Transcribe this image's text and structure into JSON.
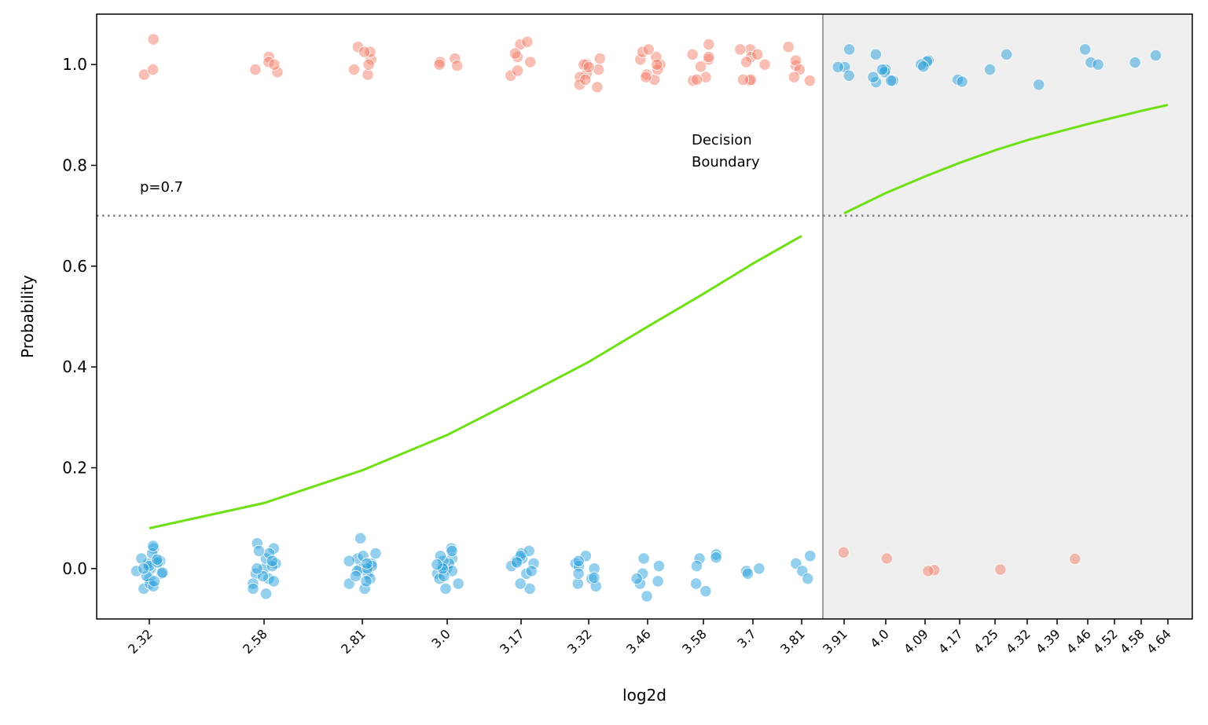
{
  "chart_data": {
    "type": "scatter",
    "xlabel": "log2d",
    "ylabel": "Probability",
    "ylim": [
      -0.1,
      1.1
    ],
    "grid": false,
    "x_tick_labels": [
      "2.32",
      "2.58",
      "2.81",
      "3.0",
      "3.17",
      "3.32",
      "3.46",
      "3.58",
      "3.7",
      "3.81",
      "3.91",
      "4.0",
      "4.09",
      "4.17",
      "4.25",
      "4.32",
      "4.39",
      "4.46",
      "4.52",
      "4.58",
      "4.64"
    ],
    "x_tick_values": [
      2.32,
      2.58,
      2.81,
      3.0,
      3.17,
      3.32,
      3.46,
      3.58,
      3.7,
      3.81,
      3.91,
      4.0,
      4.09,
      4.17,
      4.25,
      4.32,
      4.39,
      4.46,
      4.52,
      4.58,
      4.64
    ],
    "y_ticks": [
      0.0,
      0.2,
      0.4,
      0.6,
      0.8,
      1.0
    ],
    "y_tick_labels": [
      "0.0",
      "0.2",
      "0.4",
      "0.6",
      "0.8",
      "1.0"
    ],
    "threshold": {
      "value": 0.7,
      "label": "p=0.7",
      "color": "#808080",
      "style": "dotted"
    },
    "decision_boundary": {
      "x": 3.86,
      "label_line1": "Decision",
      "label_line2": "Boundary",
      "shade_color": "#efefef",
      "line_color": "#808080"
    },
    "series": [
      {
        "type": "line",
        "color": "#6ee014",
        "segments": [
          {
            "x": [
              2.32,
              2.58,
              2.81,
              3.0,
              3.17,
              3.32,
              3.46,
              3.58,
              3.7,
              3.81
            ],
            "y": [
              0.08,
              0.13,
              0.195,
              0.265,
              0.34,
              0.41,
              0.48,
              0.545,
              0.605,
              0.66
            ]
          },
          {
            "x": [
              3.91,
              4.0,
              4.09,
              4.17,
              4.25,
              4.32,
              4.39,
              4.46,
              4.52,
              4.58,
              4.64
            ],
            "y": [
              0.705,
              0.745,
              0.778,
              0.805,
              0.83,
              0.85,
              0.866,
              0.882,
              0.895,
              0.908,
              0.92
            ]
          }
        ]
      },
      {
        "type": "scatter",
        "color": "#f4806c",
        "points": [
          [
            2.32,
            1.05
          ],
          [
            2.32,
            0.98
          ],
          [
            2.32,
            0.99
          ],
          [
            2.58,
            0.985
          ],
          [
            2.58,
            1.015
          ],
          [
            2.58,
            1.005
          ],
          [
            2.58,
            0.99
          ],
          [
            2.58,
            1.0
          ],
          [
            2.81,
            0.98
          ],
          [
            2.81,
            1.01
          ],
          [
            2.81,
            1.0
          ],
          [
            2.81,
            1.035
          ],
          [
            2.81,
            1.025
          ],
          [
            2.81,
            0.99
          ],
          [
            2.81,
            1.025
          ],
          [
            3.0,
            1.005
          ],
          [
            3.0,
            1.0
          ],
          [
            3.0,
            1.012
          ],
          [
            3.0,
            0.998
          ],
          [
            3.17,
            1.005
          ],
          [
            3.17,
            0.978
          ],
          [
            3.17,
            1.04
          ],
          [
            3.17,
            1.045
          ],
          [
            3.17,
            1.015
          ],
          [
            3.17,
            1.022
          ],
          [
            3.17,
            0.988
          ],
          [
            3.32,
            1.012
          ],
          [
            3.32,
            0.99
          ],
          [
            3.32,
            0.982
          ],
          [
            3.32,
            1.0
          ],
          [
            3.32,
            0.955
          ],
          [
            3.32,
            0.975
          ],
          [
            3.32,
            0.96
          ],
          [
            3.32,
            1.0
          ],
          [
            3.32,
            0.97
          ],
          [
            3.32,
            0.995
          ],
          [
            3.46,
            1.0
          ],
          [
            3.46,
            0.98
          ],
          [
            3.46,
            0.97
          ],
          [
            3.46,
            1.01
          ],
          [
            3.46,
            0.975
          ],
          [
            3.46,
            0.99
          ],
          [
            3.46,
            1.015
          ],
          [
            3.46,
            1.025
          ],
          [
            3.46,
            1.03
          ],
          [
            3.46,
            1.0
          ],
          [
            3.58,
            1.04
          ],
          [
            3.58,
            0.968
          ],
          [
            3.58,
            0.975
          ],
          [
            3.58,
            1.02
          ],
          [
            3.58,
            1.01
          ],
          [
            3.58,
            0.996
          ],
          [
            3.58,
            1.015
          ],
          [
            3.58,
            0.97
          ],
          [
            3.7,
            0.968
          ],
          [
            3.7,
            1.03
          ],
          [
            3.7,
            0.97
          ],
          [
            3.7,
            1.0
          ],
          [
            3.7,
            1.015
          ],
          [
            3.7,
            1.03
          ],
          [
            3.7,
            1.005
          ],
          [
            3.7,
            0.97
          ],
          [
            3.7,
            1.02
          ],
          [
            3.81,
            1.035
          ],
          [
            3.81,
            0.998
          ],
          [
            3.81,
            1.008
          ],
          [
            3.81,
            0.99
          ],
          [
            3.81,
            0.975
          ],
          [
            3.81,
            0.968
          ],
          [
            3.91,
            0.032
          ],
          [
            4.0,
            0.02
          ],
          [
            4.09,
            -0.003
          ],
          [
            4.09,
            -0.005
          ],
          [
            4.25,
            -0.002
          ],
          [
            4.46,
            0.019
          ]
        ]
      },
      {
        "type": "scatter",
        "color": "#2a9fdc",
        "points": [
          [
            2.32,
            0.0
          ],
          [
            2.32,
            0.01
          ],
          [
            2.32,
            -0.02
          ],
          [
            2.32,
            0.04
          ],
          [
            2.32,
            -0.04
          ],
          [
            2.32,
            0.005
          ],
          [
            2.32,
            -0.01
          ],
          [
            2.32,
            0.02
          ],
          [
            2.32,
            -0.03
          ],
          [
            2.32,
            0.015
          ],
          [
            2.32,
            0.03
          ],
          [
            2.32,
            -0.005
          ],
          [
            2.32,
            0.045
          ],
          [
            2.32,
            -0.035
          ],
          [
            2.32,
            -0.015
          ],
          [
            2.32,
            0.012
          ],
          [
            2.32,
            -0.025
          ],
          [
            2.32,
            0.0
          ],
          [
            2.32,
            0.018
          ],
          [
            2.32,
            -0.008
          ],
          [
            2.58,
            0.0
          ],
          [
            2.58,
            -0.01
          ],
          [
            2.58,
            0.02
          ],
          [
            2.58,
            -0.02
          ],
          [
            2.58,
            0.04
          ],
          [
            2.58,
            -0.05
          ],
          [
            2.58,
            0.03
          ],
          [
            2.58,
            -0.03
          ],
          [
            2.58,
            0.01
          ],
          [
            2.58,
            -0.04
          ],
          [
            2.58,
            0.05
          ],
          [
            2.58,
            -0.015
          ],
          [
            2.58,
            0.005
          ],
          [
            2.58,
            0.035
          ],
          [
            2.58,
            -0.025
          ],
          [
            2.58,
            0.0
          ],
          [
            2.58,
            0.015
          ],
          [
            2.81,
            0.0
          ],
          [
            2.81,
            0.06
          ],
          [
            2.81,
            -0.03
          ],
          [
            2.81,
            0.02
          ],
          [
            2.81,
            -0.01
          ],
          [
            2.81,
            0.01
          ],
          [
            2.81,
            -0.02
          ],
          [
            2.81,
            0.03
          ],
          [
            2.81,
            -0.04
          ],
          [
            2.81,
            0.005
          ],
          [
            2.81,
            -0.005
          ],
          [
            2.81,
            0.015
          ],
          [
            2.81,
            -0.015
          ],
          [
            2.81,
            0.025
          ],
          [
            2.81,
            -0.025
          ],
          [
            2.81,
            0.0
          ],
          [
            2.81,
            0.01
          ],
          [
            3.0,
            0.0
          ],
          [
            3.0,
            0.04
          ],
          [
            3.0,
            -0.03
          ],
          [
            3.0,
            0.02
          ],
          [
            3.0,
            -0.01
          ],
          [
            3.0,
            0.01
          ],
          [
            3.0,
            -0.02
          ],
          [
            3.0,
            0.035
          ],
          [
            3.0,
            -0.04
          ],
          [
            3.0,
            0.005
          ],
          [
            3.0,
            -0.005
          ],
          [
            3.0,
            0.015
          ],
          [
            3.0,
            -0.015
          ],
          [
            3.0,
            0.025
          ],
          [
            3.0,
            0.0
          ],
          [
            3.0,
            0.008
          ],
          [
            3.17,
            0.02
          ],
          [
            3.17,
            0.01
          ],
          [
            3.17,
            -0.01
          ],
          [
            3.17,
            0.03
          ],
          [
            3.17,
            -0.04
          ],
          [
            3.17,
            0.035
          ],
          [
            3.17,
            0.015
          ],
          [
            3.17,
            -0.03
          ],
          [
            3.17,
            0.025
          ],
          [
            3.17,
            0.005
          ],
          [
            3.17,
            -0.005
          ],
          [
            3.17,
            0.012
          ],
          [
            3.32,
            0.01
          ],
          [
            3.32,
            -0.02
          ],
          [
            3.32,
            0.025
          ],
          [
            3.32,
            -0.03
          ],
          [
            3.32,
            0.005
          ],
          [
            3.32,
            -0.01
          ],
          [
            3.32,
            0.015
          ],
          [
            3.32,
            -0.035
          ],
          [
            3.32,
            0.0
          ],
          [
            3.32,
            -0.018
          ],
          [
            3.46,
            0.02
          ],
          [
            3.46,
            -0.03
          ],
          [
            3.46,
            -0.055
          ],
          [
            3.46,
            0.005
          ],
          [
            3.46,
            -0.01
          ],
          [
            3.46,
            -0.02
          ],
          [
            3.46,
            -0.025
          ],
          [
            3.58,
            0.02
          ],
          [
            3.58,
            0.028
          ],
          [
            3.58,
            -0.03
          ],
          [
            3.58,
            0.005
          ],
          [
            3.58,
            -0.045
          ],
          [
            3.58,
            0.022
          ],
          [
            3.7,
            -0.005
          ],
          [
            3.7,
            0.0
          ],
          [
            3.7,
            -0.01
          ],
          [
            3.81,
            0.025
          ],
          [
            3.81,
            0.01
          ],
          [
            3.81,
            -0.005
          ],
          [
            3.81,
            -0.02
          ],
          [
            3.91,
            0.995
          ],
          [
            3.91,
            1.03
          ],
          [
            3.91,
            0.978
          ],
          [
            3.91,
            0.995
          ],
          [
            4.0,
            0.965
          ],
          [
            4.0,
            0.968
          ],
          [
            4.0,
            0.975
          ],
          [
            4.0,
            1.02
          ],
          [
            4.0,
            0.99
          ],
          [
            4.0,
            0.985
          ],
          [
            4.0,
            0.99
          ],
          [
            4.0,
            0.968
          ],
          [
            4.09,
            1.008
          ],
          [
            4.09,
            1.006
          ],
          [
            4.09,
            1.0
          ],
          [
            4.09,
            0.996
          ],
          [
            4.17,
            0.97
          ],
          [
            4.17,
            0.966
          ],
          [
            4.25,
            0.99
          ],
          [
            4.25,
            1.02
          ],
          [
            4.32,
            0.96
          ],
          [
            4.46,
            1.004
          ],
          [
            4.46,
            1.03
          ],
          [
            4.46,
            1.0
          ],
          [
            4.58,
            1.004
          ],
          [
            4.64,
            1.018
          ]
        ]
      }
    ]
  }
}
